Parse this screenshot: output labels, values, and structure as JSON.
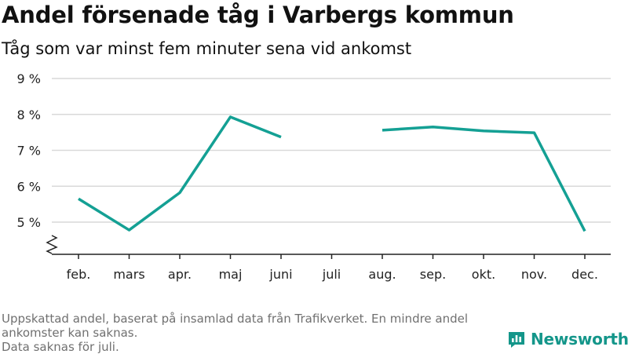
{
  "title": "Andel försenade tåg i Varbergs kommun",
  "subtitle": "Tåg som var minst fem minuter sena vid ankomst",
  "notes": [
    "Uppskattad andel, baserat på insamlad data från Trafikverket. En mindre andel ankomster kan saknas.",
    "Data saknas för juli."
  ],
  "brand": {
    "name": "Newsworthy",
    "icon": "newsworthy-logo-icon",
    "color": "#14968a"
  },
  "chart_data": {
    "type": "line",
    "title": "Andel försenade tåg i Varbergs kommun",
    "subtitle": "Tåg som var minst fem minuter sena vid ankomst",
    "categories": [
      "feb.",
      "mars",
      "apr.",
      "maj",
      "juni",
      "juli",
      "aug.",
      "sep.",
      "okt.",
      "nov.",
      "dec."
    ],
    "series": [
      {
        "values": [
          5.65,
          4.78,
          5.82,
          7.93,
          7.37,
          null,
          7.56,
          7.65,
          7.54,
          7.49,
          4.75
        ],
        "color": "#14a094"
      }
    ],
    "yticks": [
      5,
      6,
      7,
      8,
      9
    ],
    "ytick_labels": [
      "5 %",
      "6 %",
      "7 %",
      "8 %",
      "9 %"
    ],
    "ylim": [
      4.2,
      9
    ],
    "y_axis_break": true,
    "grid": true,
    "legend": "none"
  }
}
